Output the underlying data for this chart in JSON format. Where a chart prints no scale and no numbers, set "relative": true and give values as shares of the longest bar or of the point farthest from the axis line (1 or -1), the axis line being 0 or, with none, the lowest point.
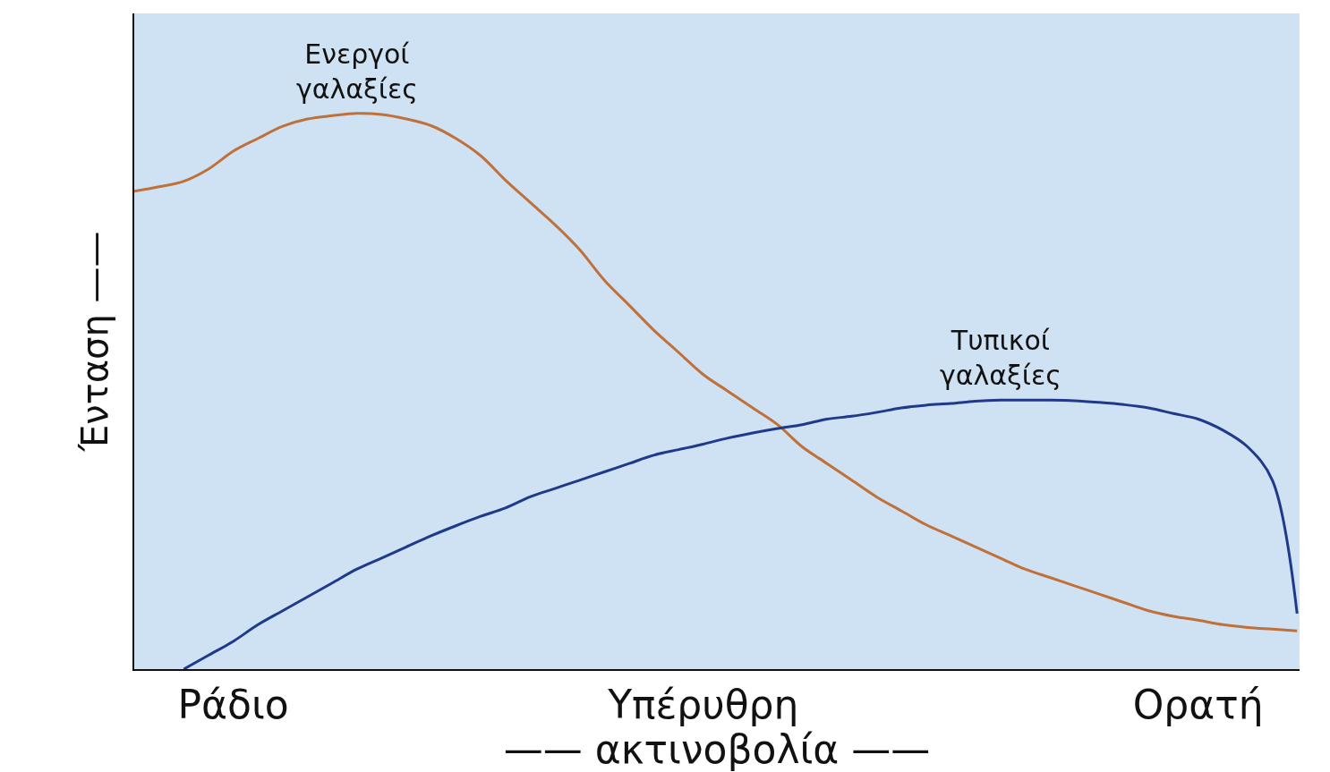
{
  "chart_data": {
    "type": "line",
    "relative": true,
    "xlabel": "—— ακτινοβολία ——",
    "ylabel": "Ένταση ——",
    "categories": [
      null,
      null,
      null,
      null,
      "Ράδιο",
      null,
      null,
      null,
      null,
      null,
      null,
      null,
      null,
      null,
      null,
      null,
      null,
      null,
      null,
      null,
      null,
      null,
      null,
      "Υπέρυθρη",
      null,
      null,
      null,
      null,
      null,
      null,
      null,
      null,
      null,
      null,
      null,
      null,
      null,
      null,
      null,
      null,
      null,
      null,
      null,
      "Ορατή",
      null,
      null,
      null,
      null
    ],
    "series": [
      {
        "name": "Ενεργοί γαλαξίες",
        "color": "#c0703a",
        "values": [
          0.86,
          0.868,
          0.878,
          0.9,
          0.932,
          0.955,
          0.977,
          0.99,
          0.996,
          1.0,
          0.998,
          0.99,
          0.978,
          0.955,
          0.924,
          0.88,
          0.84,
          0.8,
          0.755,
          0.7,
          0.655,
          0.61,
          0.57,
          0.53,
          0.5,
          0.47,
          0.44,
          0.4,
          0.37,
          0.34,
          0.31,
          0.285,
          0.26,
          0.24,
          0.22,
          0.2,
          0.18,
          0.165,
          0.15,
          0.135,
          0.12,
          0.105,
          0.095,
          0.088,
          0.08,
          0.075,
          0.072,
          0.069
        ]
      },
      {
        "name": "Τυπικοί γαλαξίες",
        "color": "#1f3a8a",
        "values": [
          null,
          null,
          0.0,
          0.025,
          0.05,
          0.08,
          0.105,
          0.13,
          0.155,
          0.18,
          0.2,
          0.22,
          0.24,
          0.258,
          0.275,
          0.29,
          0.31,
          0.325,
          0.34,
          0.355,
          0.37,
          0.385,
          0.395,
          0.405,
          0.416,
          0.425,
          0.433,
          0.44,
          0.45,
          0.455,
          0.462,
          0.47,
          0.475,
          0.478,
          0.482,
          0.484,
          0.484,
          0.484,
          0.483,
          0.48,
          0.476,
          0.47,
          0.46,
          0.45,
          0.43,
          0.4,
          0.34,
          0.1
        ]
      }
    ],
    "grid": false,
    "legend": false
  }
}
